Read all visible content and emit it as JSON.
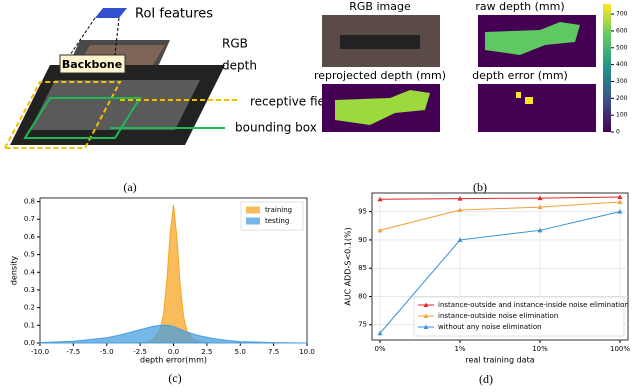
{
  "panel_a": {
    "labels": [
      "RoI features",
      "RGB",
      "Backbone",
      "depth",
      "receptive field",
      "bounding box"
    ],
    "caption": "(a)"
  },
  "panel_b": {
    "titles": [
      "RGB image",
      "raw depth (mm)",
      "reprojected depth (mm)",
      "depth error (mm)"
    ],
    "colorbar_lim": [
      0,
      760
    ],
    "colorbar_ticks": [
      0,
      100,
      200,
      300,
      400,
      500,
      600,
      700
    ],
    "caption": "(b)"
  },
  "chart_data": [
    {
      "type": "area",
      "caption": "(c)",
      "xlabel": "depth error(mm)",
      "ylabel": "density",
      "legend": "upper right",
      "x": [
        -10,
        -7.5,
        -5,
        -4,
        -3,
        -2,
        -1.5,
        -1,
        -0.75,
        -0.5,
        -0.25,
        0,
        0.25,
        0.5,
        0.75,
        1,
        1.5,
        2,
        3,
        4,
        5,
        7.5,
        10
      ],
      "series": [
        {
          "name": "training",
          "color": "#f5a623",
          "values": [
            0,
            0,
            0,
            0,
            0,
            0.005,
            0.02,
            0.08,
            0.16,
            0.35,
            0.62,
            0.78,
            0.6,
            0.33,
            0.15,
            0.07,
            0.02,
            0.005,
            0,
            0,
            0,
            0,
            0
          ]
        },
        {
          "name": "testing",
          "color": "#4a9fe0",
          "values": [
            0.002,
            0.01,
            0.03,
            0.045,
            0.065,
            0.085,
            0.095,
            0.1,
            0.1,
            0.1,
            0.098,
            0.093,
            0.085,
            0.078,
            0.07,
            0.062,
            0.05,
            0.04,
            0.025,
            0.015,
            0.008,
            0.002,
            0
          ]
        }
      ],
      "xlim": [
        -10,
        10
      ],
      "ylim": [
        0,
        0.82
      ],
      "xticks": [
        {
          "value": -10,
          "label": "-10.0"
        },
        {
          "value": -7.5,
          "label": "-7.5"
        },
        {
          "value": -5,
          "label": "-5.0"
        },
        {
          "value": -2.5,
          "label": "-2.5"
        },
        {
          "value": 0,
          "label": "0.0"
        },
        {
          "value": 2.5,
          "label": "2.5"
        },
        {
          "value": 5,
          "label": "5.0"
        },
        {
          "value": 7.5,
          "label": "7.5"
        },
        {
          "value": 10,
          "label": "10.0"
        }
      ],
      "yticks": [
        {
          "value": 0,
          "label": "0.0"
        },
        0.1,
        0.2,
        0.3,
        0.4,
        0.5,
        0.6,
        0.7,
        0.8
      ]
    },
    {
      "type": "line",
      "caption": "(d)",
      "xlabel": "real training data",
      "ylabel": "AUC ADD-S<0.1(%)",
      "legend": "lower right",
      "grid": true,
      "categories": [
        "0%",
        "1%",
        "10%",
        "100%"
      ],
      "series": [
        {
          "name": "instance-outside and instance-inside noise elimination",
          "color": "#e8262b",
          "values": [
            97.2,
            97.3,
            97.4,
            97.6
          ]
        },
        {
          "name": "instance-outside noise elimination",
          "color": "#f5a03c",
          "values": [
            91.7,
            95.3,
            95.8,
            96.7
          ]
        },
        {
          "name": "without any noise elimination",
          "color": "#3a8fd8",
          "values": [
            73.5,
            90.0,
            91.7,
            95.0
          ]
        }
      ],
      "ylim": [
        72.3,
        98.3
      ],
      "yticks": [
        75,
        80,
        85,
        90,
        95
      ]
    }
  ]
}
